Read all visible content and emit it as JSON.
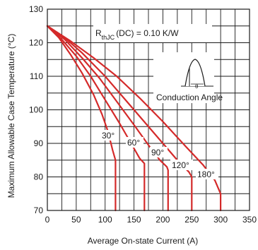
{
  "chart_data": {
    "type": "line",
    "xlabel": "Average On-state Current (A)",
    "ylabel": "Maximum Allowable Case Temperature (°C)",
    "xlim": [
      0,
      350
    ],
    "ylim": [
      70,
      130
    ],
    "x_ticks": [
      "0",
      "50",
      "100",
      "150",
      "200",
      "250",
      "300",
      "350"
    ],
    "y_ticks": [
      "70",
      "80",
      "90",
      "100",
      "110",
      "120",
      "130"
    ],
    "grid": true,
    "series_color": "#d42a2a",
    "series": [
      {
        "name": "30°",
        "x": [
          0,
          20,
          40,
          60,
          80,
          95,
          105,
          113,
          118,
          118
        ],
        "y": [
          125,
          121.5,
          116.5,
          111,
          104.5,
          98.5,
          93.5,
          88,
          85,
          70
        ]
      },
      {
        "name": "60°",
        "x": [
          0,
          25,
          50,
          75,
          100,
          125,
          145,
          160,
          168,
          168
        ],
        "y": [
          125,
          121,
          116,
          110,
          103,
          96,
          90,
          85.5,
          84,
          70
        ]
      },
      {
        "name": "90°",
        "x": [
          0,
          30,
          60,
          90,
          120,
          150,
          175,
          195,
          207,
          209,
          209
        ],
        "y": [
          125,
          121,
          115.5,
          109.5,
          102.5,
          95.5,
          89.5,
          85,
          83,
          82,
          70
        ]
      },
      {
        "name": "120°",
        "x": [
          0,
          30,
          60,
          100,
          140,
          180,
          210,
          230,
          245,
          250,
          250
        ],
        "y": [
          125,
          121.5,
          117,
          110,
          102,
          94,
          88,
          84,
          81.5,
          80,
          70
        ]
      },
      {
        "name": "180°",
        "x": [
          0,
          40,
          80,
          120,
          160,
          200,
          240,
          270,
          290,
          300,
          300
        ],
        "y": [
          125,
          120.5,
          115.5,
          110,
          103.5,
          96.5,
          89,
          83.5,
          79,
          75,
          70
        ]
      }
    ],
    "annotation": {
      "rth_prefix": "R",
      "rth_sub": "thJC",
      "rth_suffix": "(DC) = 0.10 K/W",
      "inset_label": "Conduction Angle",
      "inset_symbol": "θ"
    }
  }
}
